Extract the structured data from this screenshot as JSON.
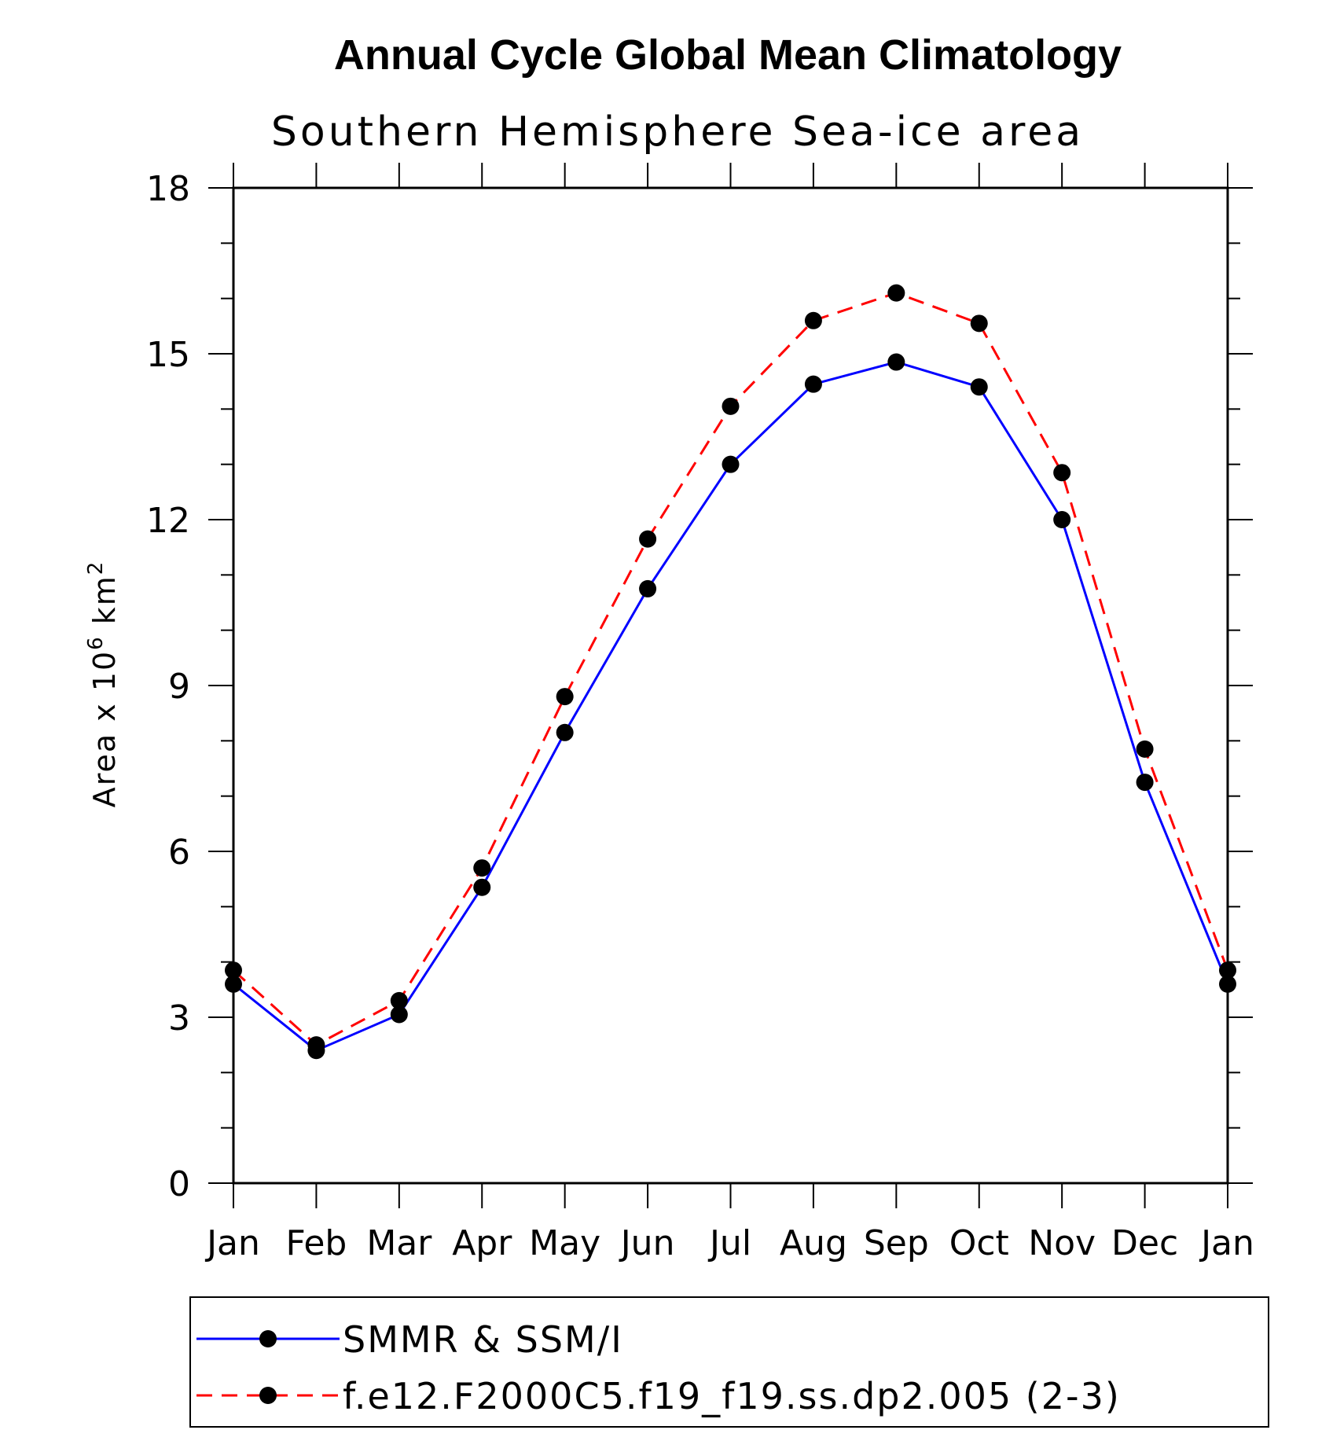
{
  "chart_data": {
    "type": "line",
    "title": "Annual Cycle Global Mean Climatology",
    "subtitle": "Southern Hemisphere Sea-ice area",
    "ylabel_prefix": "Area x 10",
    "ylabel_exponent": "6",
    "ylabel_unit": "km",
    "ylabel_unit_exponent": "2",
    "xlabel": "",
    "categories": [
      "Jan",
      "Feb",
      "Mar",
      "Apr",
      "May",
      "Jun",
      "Jul",
      "Aug",
      "Sep",
      "Oct",
      "Nov",
      "Dec",
      "Jan"
    ],
    "ylim": [
      0,
      18
    ],
    "yticks": [
      "0",
      "3",
      "6",
      "9",
      "12",
      "15",
      "18"
    ],
    "series": [
      {
        "name": "SMMR & SSM/I",
        "color": "#0000ff",
        "style": "solid",
        "values": [
          3.6,
          2.4,
          3.05,
          5.35,
          8.15,
          10.75,
          13.0,
          14.45,
          14.85,
          14.4,
          12.0,
          7.25,
          3.6
        ]
      },
      {
        "name": "f.e12.F2000C5.f19_f19.ss.dp2.005 (2-3)",
        "color": "#ff0000",
        "style": "dashed",
        "values": [
          3.85,
          2.5,
          3.3,
          5.7,
          8.8,
          11.65,
          14.05,
          15.6,
          16.1,
          15.55,
          12.85,
          7.85,
          3.85
        ]
      }
    ],
    "legend_position": "bottom"
  }
}
